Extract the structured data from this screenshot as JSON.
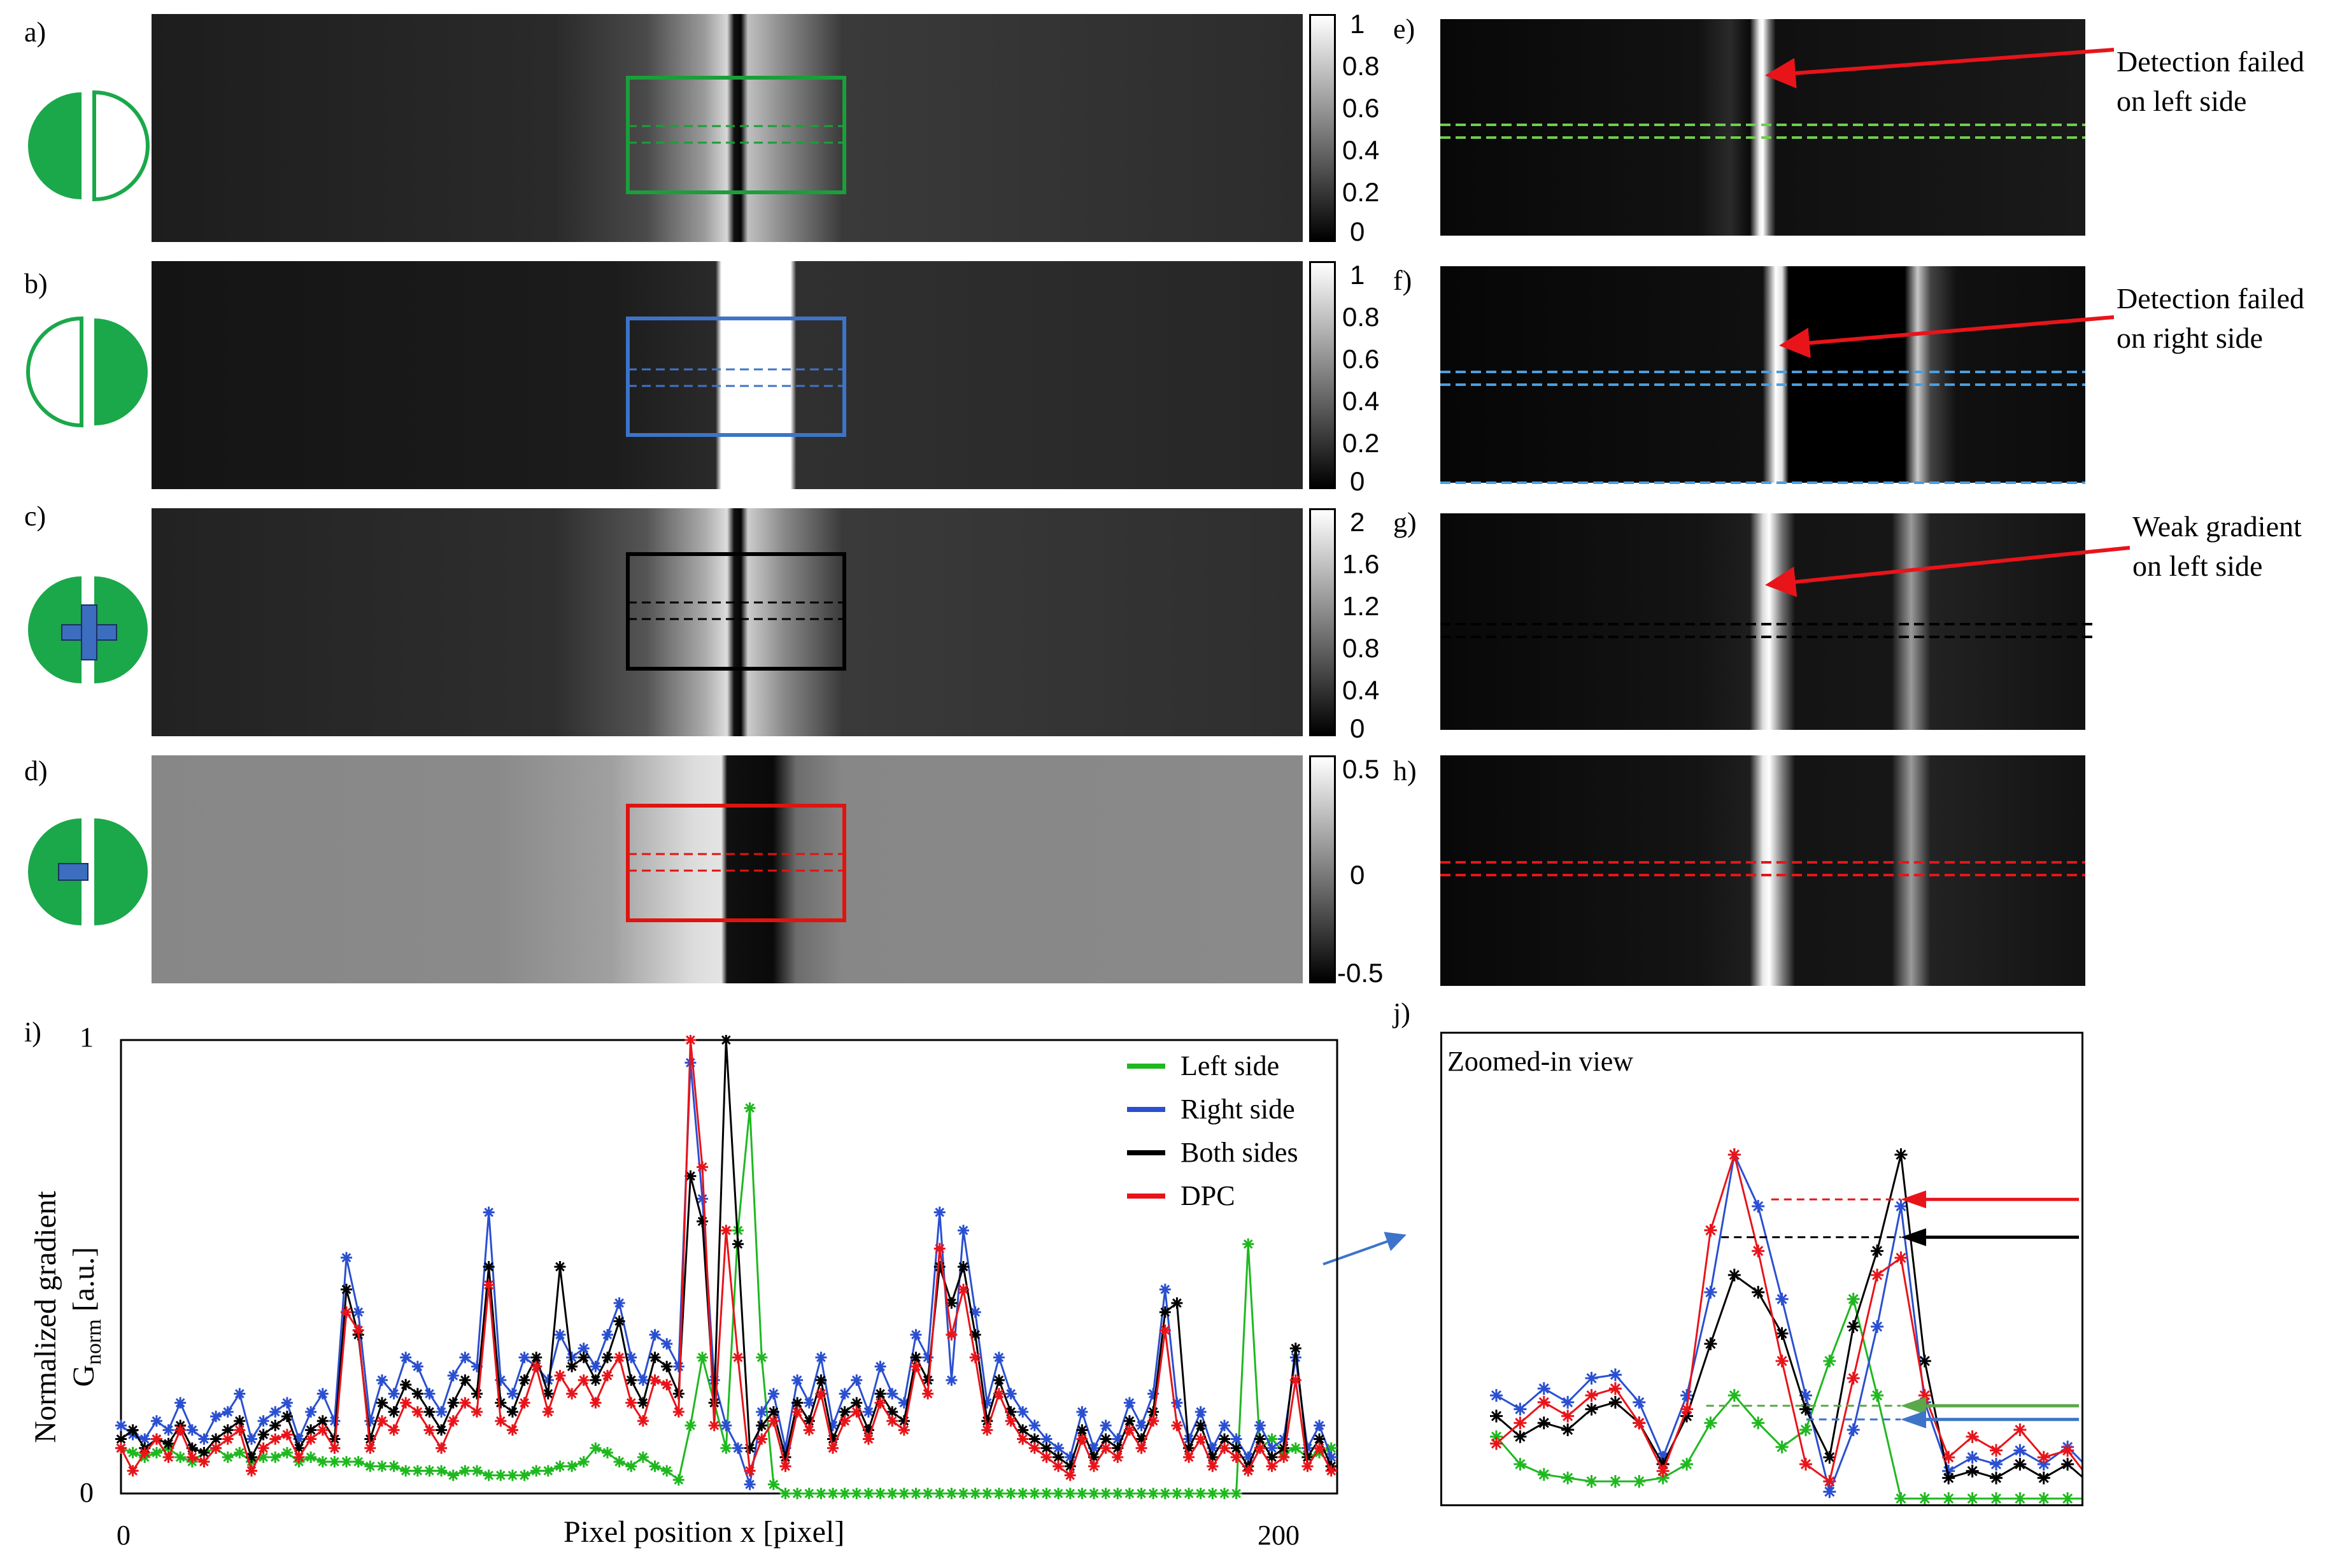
{
  "panel_labels": {
    "a": "a)",
    "b": "b)",
    "c": "c)",
    "d": "d)",
    "e": "e)",
    "f": "f)",
    "g": "g)",
    "h": "h)",
    "i": "i)",
    "j": "j)"
  },
  "colorbars": {
    "a": [
      "1",
      "0.8",
      "0.6",
      "0.4",
      "0.2",
      "0"
    ],
    "b": [
      "1",
      "0.8",
      "0.6",
      "0.4",
      "0.2",
      "0"
    ],
    "c": [
      "2",
      "1.6",
      "1.2",
      "0.8",
      "0.4",
      "0"
    ],
    "d": [
      "0.5",
      "0",
      "-0.5"
    ]
  },
  "annotations": {
    "e": [
      "Detection failed",
      "on left side"
    ],
    "f": [
      "Detection failed",
      "on right side"
    ],
    "g": [
      "Weak gradient",
      "on left side"
    ]
  },
  "colors": {
    "left": "#1fb81f",
    "right": "#2a4fd0",
    "both": "#000000",
    "dpc": "#e8141a",
    "green_box": "#1a9f3a",
    "blue_box": "#3d74c9",
    "red_box": "#e0140f",
    "icon_green": "#1aa84a",
    "icon_blue": "#3c6dbf"
  },
  "icon_names": [
    "left-half-illumination-icon",
    "right-half-illumination-icon",
    "both-sides-sum-icon",
    "dpc-difference-icon"
  ],
  "plot_i": {
    "ylabel_line1": "Normalized gradient",
    "ylabel_g": "G",
    "ylabel_sub": "norm",
    "ylabel_unit": " [a.u.]",
    "xlabel": "Pixel position x [pixel]",
    "xticks": [
      "0",
      "200"
    ],
    "yticks": [
      "0",
      "1"
    ]
  },
  "plot_j": {
    "title": "Zoomed-in view"
  },
  "chart_data": [
    {
      "type": "line",
      "title": "",
      "xlabel": "Pixel position x [pixel]",
      "ylabel": "Normalized gradient G_norm [a.u.]",
      "xlim": [
        0,
        205
      ],
      "ylim": [
        0,
        1
      ],
      "legend_position": "top-right",
      "x_start": 0,
      "x_step": 2,
      "series": [
        {
          "name": "Left side",
          "color": "#1fb81f",
          "values": [
            0.1,
            0.09,
            0.08,
            0.09,
            0.1,
            0.08,
            0.07,
            0.09,
            0.1,
            0.08,
            0.09,
            0.07,
            0.08,
            0.08,
            0.09,
            0.07,
            0.08,
            0.07,
            0.07,
            0.07,
            0.07,
            0.06,
            0.06,
            0.06,
            0.05,
            0.05,
            0.05,
            0.05,
            0.04,
            0.05,
            0.05,
            0.04,
            0.04,
            0.04,
            0.04,
            0.05,
            0.05,
            0.06,
            0.06,
            0.07,
            0.1,
            0.09,
            0.07,
            0.06,
            0.08,
            0.06,
            0.05,
            0.03,
            0.15,
            0.3,
            0.2,
            0.1,
            0.58,
            0.85,
            0.3,
            0.02,
            0.0,
            0.0,
            0.0,
            0.0,
            0.0,
            0.0,
            0.0,
            0.0,
            0.0,
            0.0,
            0.0,
            0.0,
            0.0,
            0.0,
            0.0,
            0.0,
            0.0,
            0.0,
            0.0,
            0.0,
            0.0,
            0.0,
            0.0,
            0.0,
            0.0,
            0.0,
            0.0,
            0.0,
            0.0,
            0.0,
            0.0,
            0.0,
            0.0,
            0.0,
            0.0,
            0.0,
            0.0,
            0.0,
            0.0,
            0.55,
            0.1,
            0.12,
            0.09,
            0.1,
            0.08,
            0.09,
            0.1
          ]
        },
        {
          "name": "Right side",
          "color": "#2a4fd0",
          "values": [
            0.15,
            0.13,
            0.12,
            0.16,
            0.14,
            0.2,
            0.14,
            0.12,
            0.17,
            0.18,
            0.22,
            0.12,
            0.16,
            0.18,
            0.2,
            0.12,
            0.18,
            0.22,
            0.16,
            0.52,
            0.4,
            0.16,
            0.25,
            0.22,
            0.3,
            0.28,
            0.22,
            0.18,
            0.26,
            0.3,
            0.28,
            0.62,
            0.25,
            0.22,
            0.3,
            0.28,
            0.25,
            0.35,
            0.3,
            0.32,
            0.28,
            0.35,
            0.42,
            0.3,
            0.25,
            0.35,
            0.33,
            0.28,
            0.95,
            0.65,
            0.25,
            0.15,
            0.1,
            0.02,
            0.18,
            0.22,
            0.1,
            0.25,
            0.2,
            0.3,
            0.15,
            0.22,
            0.25,
            0.18,
            0.28,
            0.22,
            0.2,
            0.35,
            0.3,
            0.62,
            0.25,
            0.58,
            0.4,
            0.2,
            0.3,
            0.22,
            0.18,
            0.15,
            0.12,
            0.1,
            0.08,
            0.18,
            0.1,
            0.15,
            0.12,
            0.2,
            0.15,
            0.22,
            0.45,
            0.2,
            0.12,
            0.18,
            0.1,
            0.15,
            0.12,
            0.08,
            0.15,
            0.1,
            0.12,
            0.3,
            0.1,
            0.15,
            0.08
          ]
        },
        {
          "name": "Both sides",
          "color": "#000000",
          "values": [
            0.12,
            0.14,
            0.1,
            0.12,
            0.11,
            0.15,
            0.1,
            0.09,
            0.12,
            0.14,
            0.16,
            0.08,
            0.13,
            0.15,
            0.17,
            0.1,
            0.14,
            0.16,
            0.12,
            0.45,
            0.35,
            0.12,
            0.2,
            0.18,
            0.24,
            0.22,
            0.18,
            0.14,
            0.2,
            0.25,
            0.22,
            0.5,
            0.2,
            0.18,
            0.25,
            0.3,
            0.22,
            0.5,
            0.28,
            0.3,
            0.25,
            0.3,
            0.38,
            0.25,
            0.2,
            0.3,
            0.28,
            0.22,
            0.7,
            0.6,
            0.2,
            1.0,
            0.55,
            0.1,
            0.15,
            0.18,
            0.08,
            0.2,
            0.16,
            0.25,
            0.12,
            0.18,
            0.2,
            0.14,
            0.22,
            0.18,
            0.16,
            0.3,
            0.25,
            0.5,
            0.42,
            0.5,
            0.35,
            0.16,
            0.25,
            0.18,
            0.14,
            0.12,
            0.1,
            0.08,
            0.06,
            0.14,
            0.08,
            0.12,
            0.1,
            0.16,
            0.12,
            0.18,
            0.4,
            0.42,
            0.1,
            0.15,
            0.08,
            0.12,
            0.1,
            0.06,
            0.12,
            0.08,
            0.1,
            0.32,
            0.08,
            0.12,
            0.06
          ]
        },
        {
          "name": "DPC",
          "color": "#e8141a",
          "values": [
            0.1,
            0.05,
            0.09,
            0.12,
            0.08,
            0.14,
            0.08,
            0.07,
            0.1,
            0.12,
            0.14,
            0.05,
            0.1,
            0.12,
            0.13,
            0.08,
            0.12,
            0.14,
            0.1,
            0.4,
            0.36,
            0.1,
            0.16,
            0.14,
            0.2,
            0.18,
            0.14,
            0.1,
            0.16,
            0.2,
            0.18,
            0.46,
            0.16,
            0.14,
            0.2,
            0.28,
            0.18,
            0.26,
            0.22,
            0.25,
            0.2,
            0.26,
            0.3,
            0.2,
            0.16,
            0.25,
            0.24,
            0.18,
            1.0,
            0.72,
            0.15,
            0.58,
            0.3,
            0.05,
            0.12,
            0.16,
            0.06,
            0.18,
            0.14,
            0.22,
            0.1,
            0.16,
            0.18,
            0.12,
            0.2,
            0.16,
            0.14,
            0.28,
            0.22,
            0.54,
            0.35,
            0.45,
            0.3,
            0.14,
            0.22,
            0.16,
            0.12,
            0.1,
            0.08,
            0.06,
            0.04,
            0.12,
            0.06,
            0.1,
            0.08,
            0.14,
            0.1,
            0.16,
            0.36,
            0.15,
            0.08,
            0.12,
            0.06,
            0.1,
            0.08,
            0.05,
            0.1,
            0.06,
            0.08,
            0.25,
            0.06,
            0.1,
            0.05
          ]
        }
      ]
    },
    {
      "type": "line",
      "title": "Zoomed-in view",
      "xlim": [
        0,
        21
      ],
      "ylim": [
        0,
        1
      ],
      "x_start": 0,
      "x_step": 1,
      "series": [
        {
          "name": "Left side",
          "color": "#1fb81f",
          "values": [
            0.18,
            0.1,
            0.07,
            0.06,
            0.05,
            0.05,
            0.05,
            0.06,
            0.1,
            0.22,
            0.3,
            0.22,
            0.15,
            0.2,
            0.4,
            0.58,
            0.3,
            0.0,
            0.0,
            0.0,
            0.0,
            0.0,
            0.0,
            0.0,
            0.0,
            0.0
          ]
        },
        {
          "name": "Right side",
          "color": "#2a4fd0",
          "values": [
            0.3,
            0.26,
            0.32,
            0.28,
            0.35,
            0.36,
            0.28,
            0.12,
            0.3,
            0.6,
            1.0,
            0.85,
            0.58,
            0.3,
            0.02,
            0.2,
            0.5,
            0.85,
            0.28,
            0.08,
            0.12,
            0.1,
            0.14,
            0.1,
            0.15,
            0.08
          ]
        },
        {
          "name": "Both sides",
          "color": "#000000",
          "values": [
            0.24,
            0.18,
            0.22,
            0.2,
            0.26,
            0.28,
            0.22,
            0.1,
            0.24,
            0.45,
            0.65,
            0.6,
            0.48,
            0.26,
            0.12,
            0.5,
            0.72,
            1.0,
            0.4,
            0.06,
            0.08,
            0.06,
            0.1,
            0.06,
            0.1,
            0.04
          ]
        },
        {
          "name": "DPC",
          "color": "#e8141a",
          "values": [
            0.16,
            0.22,
            0.28,
            0.24,
            0.3,
            0.32,
            0.22,
            0.08,
            0.26,
            0.78,
            1.0,
            0.72,
            0.4,
            0.1,
            0.05,
            0.35,
            0.65,
            0.7,
            0.3,
            0.12,
            0.18,
            0.14,
            0.2,
            0.12,
            0.14,
            0.05
          ]
        }
      ]
    }
  ]
}
